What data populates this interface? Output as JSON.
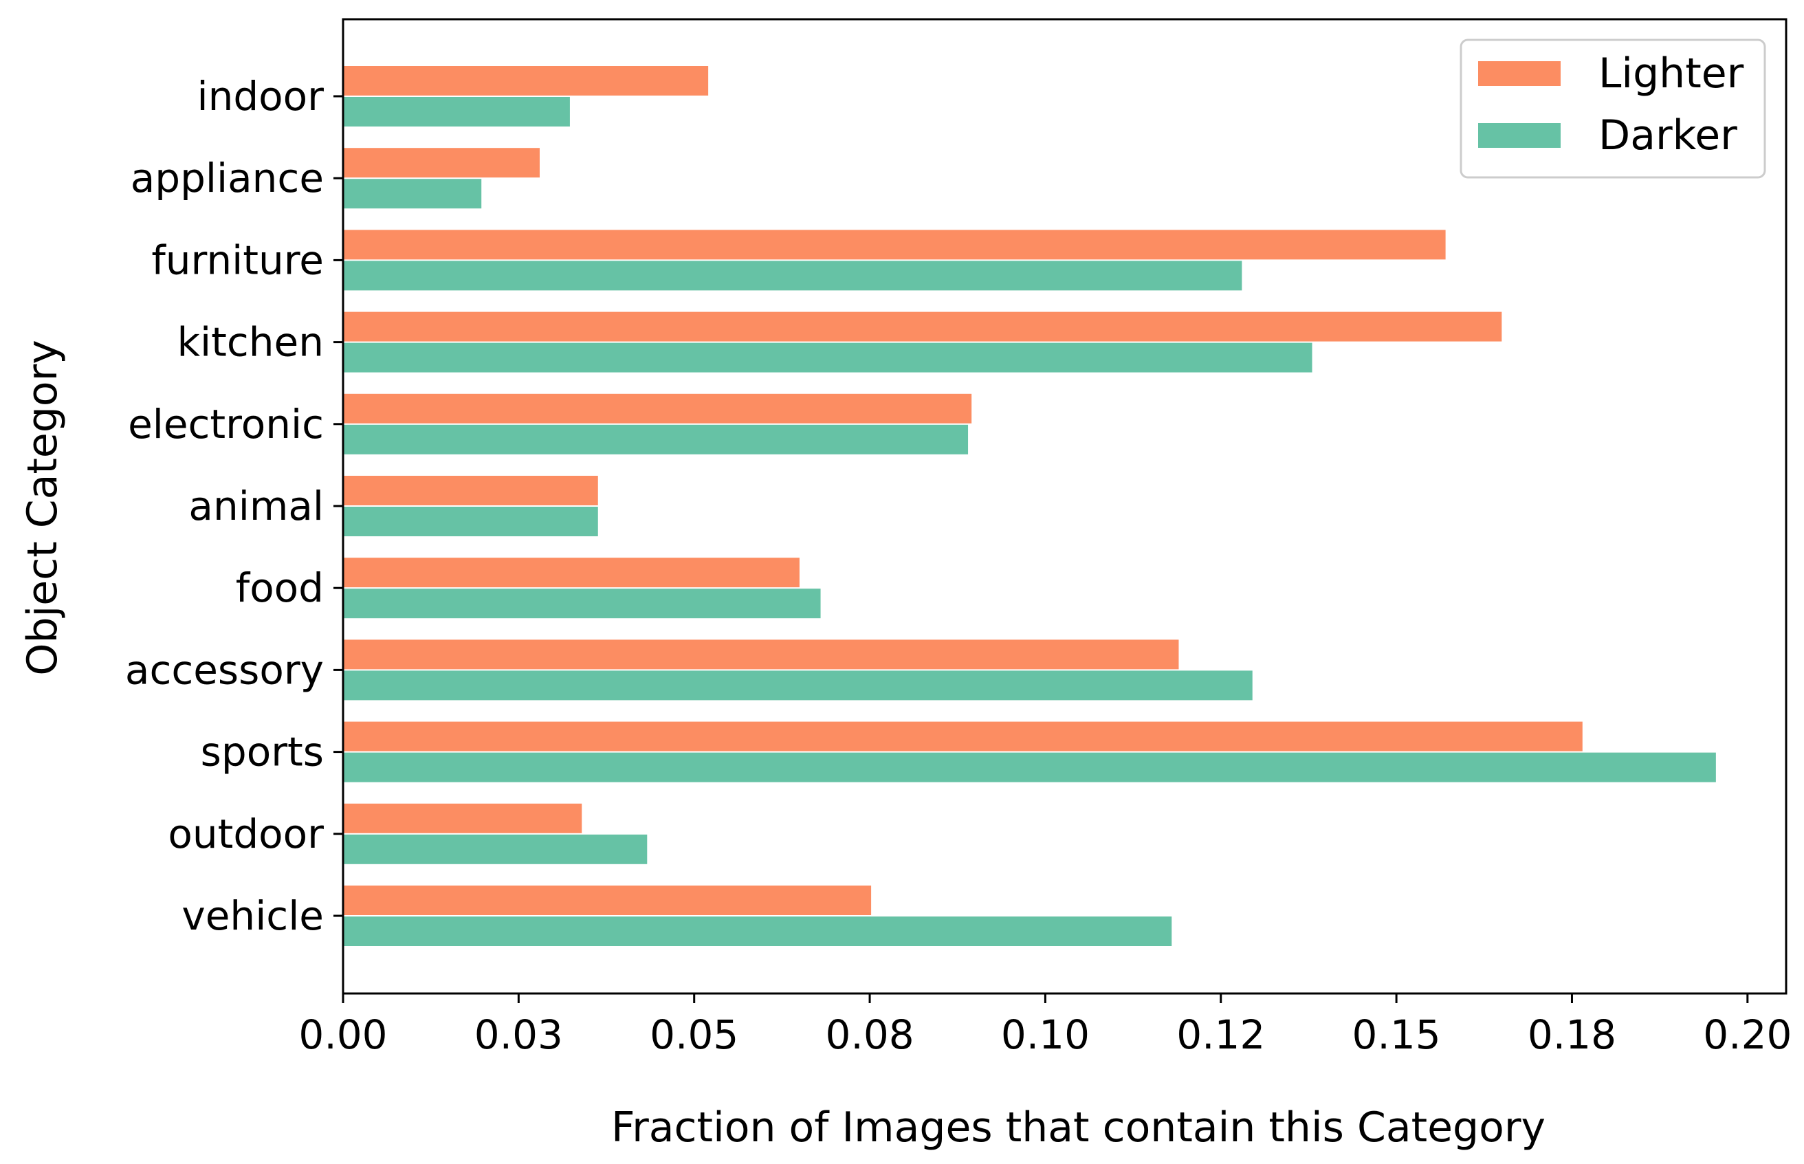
{
  "chart_data": {
    "type": "bar",
    "orientation": "horizontal",
    "title": "",
    "xlabel": "Fraction of Images that contain this Category",
    "ylabel": "Object Category",
    "categories": [
      "indoor",
      "appliance",
      "furniture",
      "kitchen",
      "electronic",
      "animal",
      "food",
      "accessory",
      "sports",
      "outdoor",
      "vehicle"
    ],
    "series": [
      {
        "name": "Lighter",
        "color": "#fc8d62",
        "values": [
          0.052,
          0.028,
          0.157,
          0.165,
          0.0895,
          0.0363,
          0.065,
          0.119,
          0.1765,
          0.034,
          0.0752
        ]
      },
      {
        "name": "Darker",
        "color": "#66c2a5",
        "values": [
          0.0323,
          0.0197,
          0.128,
          0.138,
          0.089,
          0.0363,
          0.068,
          0.1295,
          0.1955,
          0.0433,
          0.118
        ]
      }
    ],
    "xlim": [
      0,
      0.2055
    ],
    "xticks": [
      0,
      0.025,
      0.05,
      0.075,
      0.1,
      0.125,
      0.15,
      0.175,
      0.2
    ],
    "xtick_labels": [
      "0.00",
      "0.03",
      "0.05",
      "0.08",
      "0.10",
      "0.12",
      "0.15",
      "0.18",
      "0.20"
    ],
    "grid": false,
    "legend_position": "top-right"
  }
}
